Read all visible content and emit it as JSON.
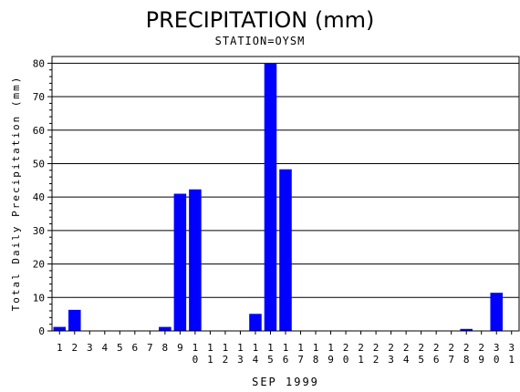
{
  "chart_data": {
    "type": "bar",
    "title": "PRECIPITATION (mm)",
    "subtitle": "STATION=OYSM",
    "xlabel": "SEP 1999",
    "ylabel": "Total Daily Precipitation (mm)",
    "ylim": [
      0,
      82
    ],
    "yticks": [
      0,
      10,
      20,
      30,
      40,
      50,
      60,
      70,
      80
    ],
    "grid": true,
    "bar_color": "#0000ff",
    "categories": [
      "1",
      "2",
      "3",
      "4",
      "5",
      "6",
      "7",
      "8",
      "9",
      "10",
      "11",
      "12",
      "13",
      "14",
      "15",
      "16",
      "17",
      "18",
      "19",
      "20",
      "21",
      "22",
      "23",
      "24",
      "25",
      "26",
      "27",
      "28",
      "29",
      "30",
      "31"
    ],
    "values": [
      1.2,
      6.3,
      0,
      0,
      0,
      0,
      0,
      1.2,
      41,
      42.3,
      0,
      0,
      0,
      5.1,
      80,
      48.3,
      0,
      0,
      0,
      0,
      0,
      0,
      0,
      0,
      0,
      0,
      0,
      0.6,
      0,
      11.4,
      0
    ]
  }
}
